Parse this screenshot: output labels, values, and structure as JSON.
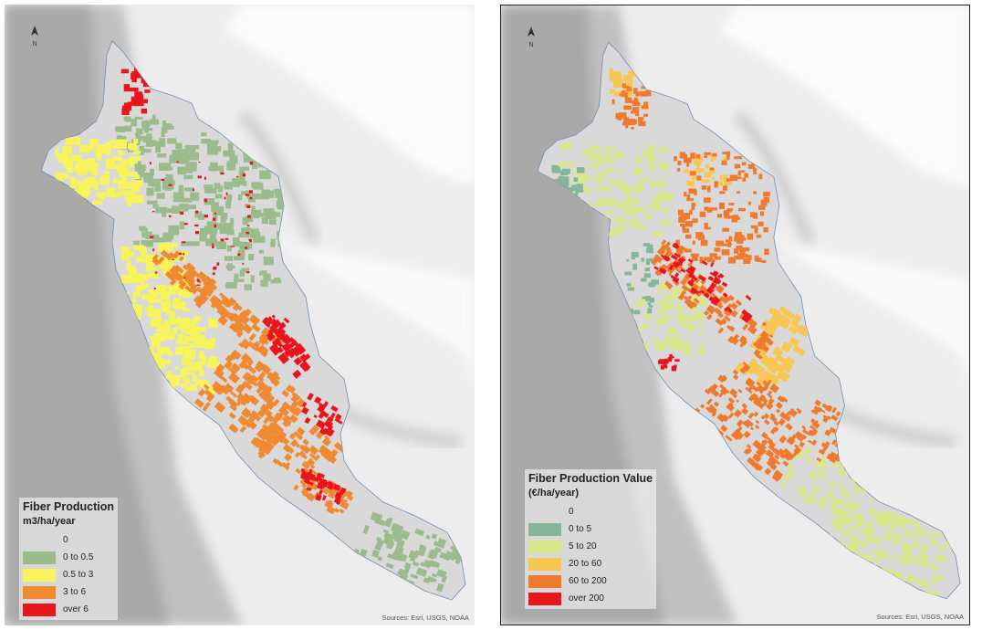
{
  "left_map": {
    "legend_title": "Fiber Production",
    "legend_unit": "m3/ha/year",
    "classes": [
      {
        "label": "0",
        "color": "#d9d9d9"
      },
      {
        "label": "0 to 0.5",
        "color": "#9cbb8c"
      },
      {
        "label": "0.5 to 3",
        "color": "#f6f45a"
      },
      {
        "label": "3 to 6",
        "color": "#f08a32"
      },
      {
        "label": "over 6",
        "color": "#e8161c"
      }
    ],
    "north_label": "N",
    "source": "Sources: Esri, USGS, NOAA"
  },
  "right_map": {
    "legend_title": "Fiber Production Value",
    "legend_unit": "(€/ha/year)",
    "classes": [
      {
        "label": "0",
        "color": "#d9d9d9"
      },
      {
        "label": "0 to 5",
        "color": "#86b69a"
      },
      {
        "label": "5 to 20",
        "color": "#dbe78c"
      },
      {
        "label": "20 to 60",
        "color": "#f7c653"
      },
      {
        "label": "60 to 200",
        "color": "#ef7a2e"
      },
      {
        "label": "over 200",
        "color": "#e8161c"
      }
    ],
    "north_label": "N",
    "source": "Sources: Esri, USGS, NOAA"
  }
}
